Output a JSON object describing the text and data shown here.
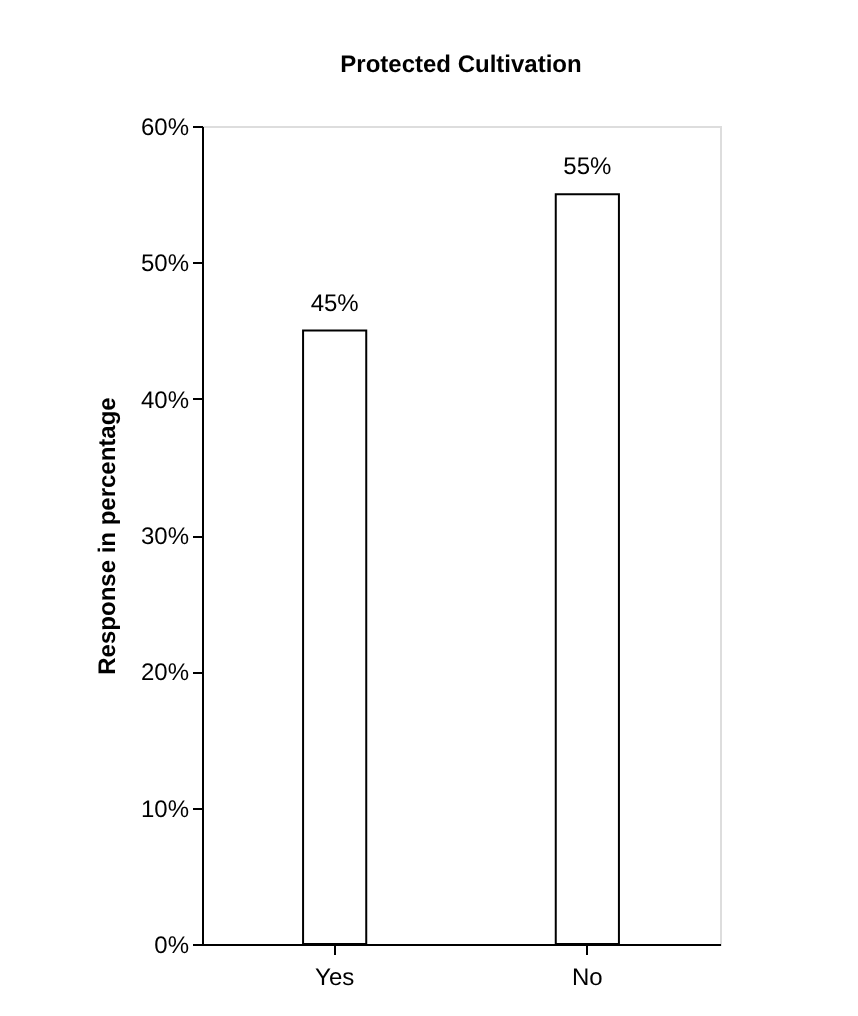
{
  "chart_data": {
    "type": "bar",
    "title": "Protected Cultivation",
    "ylabel": "Response in percentage",
    "categories": [
      "Yes",
      "No"
    ],
    "values": [
      45,
      55
    ],
    "value_labels": [
      "45%",
      "55%"
    ],
    "color": "#ffffff",
    "ylim": [
      0,
      60
    ],
    "yticks": [
      {
        "value": 0,
        "label": "0%"
      },
      {
        "value": 10,
        "label": "10%"
      },
      {
        "value": 20,
        "label": "20%"
      },
      {
        "value": 30,
        "label": "30%"
      },
      {
        "value": 40,
        "label": "40%"
      },
      {
        "value": 50,
        "label": "50%"
      },
      {
        "value": 60,
        "label": "60%"
      }
    ],
    "grid": false
  }
}
